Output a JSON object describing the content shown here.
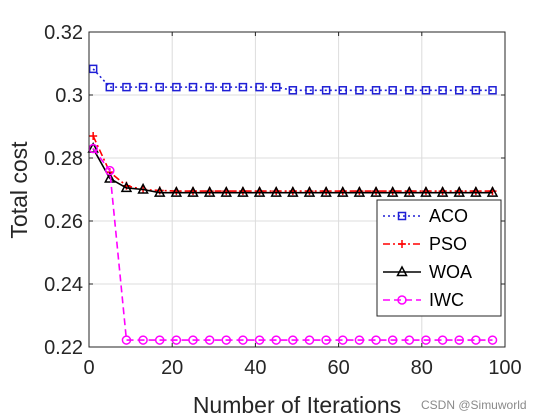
{
  "chart_data": {
    "type": "line",
    "xlabel": "Number of Iterations",
    "ylabel": "Total cost",
    "xlim": [
      0,
      100
    ],
    "ylim": [
      0.22,
      0.32
    ],
    "xticks": [
      0,
      20,
      40,
      60,
      80,
      100
    ],
    "xtick_labels": [
      "0",
      "20",
      "40",
      "60",
      "80",
      "100"
    ],
    "yticks": [
      0.22,
      0.24,
      0.26,
      0.28,
      0.3,
      0.32
    ],
    "ytick_labels": [
      "0.22",
      "0.24",
      "0.26",
      "0.28",
      "0.3",
      "0.32"
    ],
    "grid": true,
    "legend_position": "bottom-right",
    "x": [
      1,
      5,
      9,
      13,
      17,
      21,
      25,
      29,
      33,
      37,
      41,
      45,
      49,
      53,
      57,
      61,
      65,
      69,
      73,
      77,
      81,
      85,
      89,
      93,
      97
    ],
    "series": [
      {
        "name": "ACO",
        "color": "#1f1fd6",
        "line_style": "dotted",
        "marker": "square",
        "values": [
          0.3083,
          0.3025,
          0.3025,
          0.3025,
          0.3025,
          0.3025,
          0.3025,
          0.3025,
          0.3025,
          0.3025,
          0.3025,
          0.3025,
          0.3015,
          0.3015,
          0.3015,
          0.3015,
          0.3015,
          0.3015,
          0.3015,
          0.3015,
          0.3015,
          0.3015,
          0.3015,
          0.3015,
          0.3015
        ]
      },
      {
        "name": "PSO",
        "color": "#ff0000",
        "line_style": "dashdot",
        "marker": "plus",
        "values": [
          0.287,
          0.2755,
          0.2712,
          0.27,
          0.2697,
          0.2695,
          0.2695,
          0.2695,
          0.2695,
          0.2695,
          0.2695,
          0.2695,
          0.2695,
          0.2695,
          0.2695,
          0.2695,
          0.2695,
          0.2695,
          0.2695,
          0.2695,
          0.2695,
          0.2695,
          0.2695,
          0.2695,
          0.2695
        ]
      },
      {
        "name": "WOA",
        "color": "#000000",
        "line_style": "solid",
        "marker": "triangle",
        "values": [
          0.283,
          0.2735,
          0.2705,
          0.27,
          0.269,
          0.269,
          0.269,
          0.269,
          0.269,
          0.269,
          0.269,
          0.269,
          0.269,
          0.269,
          0.269,
          0.269,
          0.269,
          0.269,
          0.269,
          0.269,
          0.269,
          0.269,
          0.269,
          0.269,
          0.269
        ]
      },
      {
        "name": "IWC",
        "color": "#ff00ff",
        "line_style": "dashed",
        "marker": "circle",
        "values": [
          0.283,
          0.276,
          0.2222,
          0.2222,
          0.2222,
          0.2222,
          0.2222,
          0.2222,
          0.2222,
          0.2222,
          0.2222,
          0.2222,
          0.2222,
          0.2222,
          0.2222,
          0.2222,
          0.2222,
          0.2222,
          0.2222,
          0.2222,
          0.2222,
          0.2222,
          0.2222,
          0.2222,
          0.2222
        ]
      }
    ]
  },
  "watermark": "CSDN @Simuworld"
}
